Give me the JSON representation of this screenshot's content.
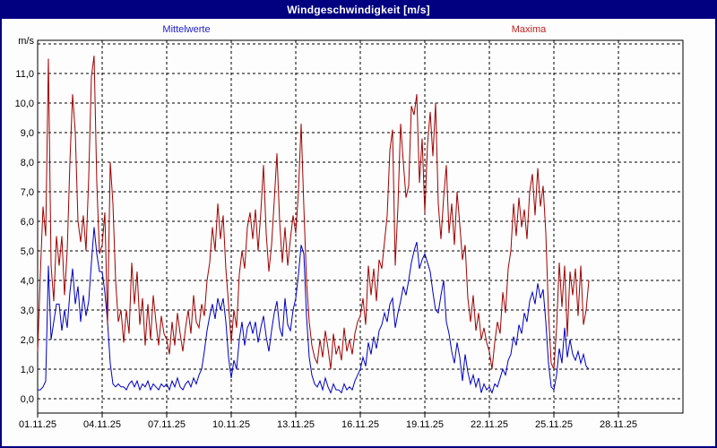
{
  "window": {
    "title": "Windgeschwindigkeit [m/s]",
    "title_bar_color": "#000080",
    "border_color": "#000080",
    "background": "#FDFDFD"
  },
  "legend": {
    "mittelwerte": {
      "label": "Mittelwerte",
      "color": "#2222C8"
    },
    "maxima": {
      "label": "Maxima",
      "color": "#C02020"
    }
  },
  "chart_data": {
    "type": "line",
    "title": "Windgeschwindigkeit [m/s]",
    "y_unit": "m/s",
    "grid": "dashed",
    "sample_interval_hours": 3,
    "x_axis": {
      "tick_labels": [
        "01.11.25",
        "04.11.25",
        "07.11.25",
        "10.11.25",
        "13.11.25",
        "16.11.25",
        "19.11.25",
        "22.11.25",
        "25.11.25",
        "28.11.25"
      ],
      "tick_day_offsets": [
        0,
        3,
        6,
        9,
        12,
        15,
        18,
        21,
        24,
        27
      ],
      "total_days_span": 30
    },
    "y_axis": {
      "tick_values": [
        0,
        1,
        2,
        3,
        4,
        5,
        6,
        7,
        8,
        9,
        10,
        11
      ],
      "tick_labels": [
        "0,0",
        "1,0",
        "2,0",
        "3,0",
        "4,0",
        "5,0",
        "6,0",
        "7,0",
        "8,0",
        "9,0",
        "10,0",
        "11,0"
      ],
      "gridline_max_value": 12,
      "ylim": [
        -0.5,
        12.1
      ]
    },
    "series": [
      {
        "name": "Mittelwerte",
        "color": "#0000C0",
        "values": [
          0.3,
          0.3,
          0.4,
          0.6,
          4.5,
          2.0,
          2.6,
          3.2,
          3.2,
          2.3,
          3.0,
          2.4,
          3.6,
          4.4,
          3.2,
          3.8,
          2.6,
          3.5,
          2.8,
          3.3,
          4.6,
          5.8,
          4.9,
          4.3,
          4.3,
          3.6,
          2.6,
          1.2,
          0.5,
          0.4,
          0.5,
          0.4,
          0.4,
          0.3,
          0.5,
          0.6,
          0.4,
          0.6,
          0.3,
          0.5,
          0.4,
          0.6,
          0.3,
          0.5,
          0.4,
          0.3,
          0.5,
          0.4,
          0.5,
          0.3,
          0.6,
          0.4,
          0.7,
          0.4,
          0.3,
          0.5,
          0.6,
          0.4,
          0.7,
          0.5,
          0.8,
          1.0,
          1.6,
          2.3,
          2.8,
          3.2,
          2.7,
          3.4,
          3.0,
          3.4,
          2.6,
          1.4,
          0.7,
          1.3,
          1.0,
          2.0,
          2.6,
          1.8,
          2.4,
          2.6,
          2.2,
          2.6,
          1.9,
          2.4,
          2.8,
          2.1,
          1.6,
          2.3,
          2.9,
          3.3,
          2.4,
          2.1,
          3.4,
          2.5,
          2.3,
          3.0,
          3.4,
          4.2,
          5.2,
          4.9,
          2.8,
          1.4,
          0.8,
          0.5,
          0.4,
          0.6,
          0.3,
          0.7,
          0.4,
          0.2,
          0.5,
          0.3,
          0.3,
          0.2,
          0.5,
          0.3,
          0.4,
          0.3,
          0.6,
          0.8,
          1.0,
          1.4,
          1.1,
          1.9,
          1.5,
          2.1,
          1.7,
          2.3,
          2.5,
          2.9,
          2.6,
          3.2,
          3.4,
          2.4,
          2.9,
          3.3,
          3.8,
          3.5,
          4.0,
          4.6,
          5.0,
          5.3,
          4.4,
          4.7,
          4.9,
          4.6,
          4.3,
          3.6,
          3.0,
          2.9,
          3.5,
          4.0,
          2.6,
          2.2,
          1.6,
          1.2,
          1.9,
          1.4,
          0.6,
          1.5,
          0.9,
          0.5,
          0.8,
          0.4,
          0.7,
          0.2,
          0.5,
          0.3,
          0.4,
          0.2,
          0.5,
          0.4,
          0.7,
          1.0,
          0.8,
          1.3,
          1.5,
          2.1,
          1.8,
          2.5,
          2.2,
          2.9,
          2.6,
          3.3,
          3.6,
          3.2,
          3.9,
          3.4,
          3.7,
          2.6,
          1.2,
          0.4,
          0.3,
          0.8,
          1.7,
          1.2,
          2.4,
          1.4,
          2.0,
          1.5,
          1.3,
          1.6,
          1.2,
          1.5,
          1.1,
          1.0
        ]
      },
      {
        "name": "Maxima",
        "color": "#A00000",
        "values": [
          1.6,
          4.2,
          6.5,
          5.5,
          11.5,
          4.5,
          3.3,
          5.5,
          4.5,
          5.5,
          3.5,
          5.0,
          8.0,
          10.3,
          9.0,
          6.0,
          5.3,
          6.2,
          5.0,
          7.5,
          10.9,
          11.6,
          7.3,
          4.9,
          5.2,
          6.3,
          2.5,
          8.0,
          6.6,
          4.0,
          2.6,
          3.0,
          1.9,
          3.0,
          2.2,
          4.6,
          3.2,
          4.3,
          2.5,
          3.4,
          1.8,
          3.2,
          2.0,
          3.5,
          2.6,
          1.8,
          2.8,
          2.2,
          2.0,
          1.5,
          2.6,
          1.8,
          2.9,
          2.2,
          1.6,
          2.4,
          3.0,
          2.2,
          3.5,
          2.6,
          2.4,
          3.2,
          2.8,
          4.0,
          4.6,
          5.8,
          5.0,
          6.6,
          5.4,
          6.2,
          4.4,
          3.2,
          1.9,
          3.0,
          2.4,
          4.2,
          5.0,
          4.4,
          5.8,
          6.3,
          5.4,
          6.4,
          5.0,
          6.3,
          7.9,
          5.6,
          4.3,
          5.2,
          6.7,
          8.3,
          6.0,
          4.6,
          5.8,
          4.5,
          5.4,
          6.2,
          5.6,
          7.0,
          9.3,
          6.5,
          4.0,
          2.6,
          1.8,
          1.4,
          1.2,
          2.0,
          1.4,
          2.3,
          1.7,
          1.0,
          2.2,
          1.5,
          1.8,
          1.3,
          2.4,
          1.6,
          2.0,
          1.5,
          2.2,
          2.6,
          2.8,
          3.4,
          2.5,
          4.5,
          3.5,
          4.4,
          3.3,
          4.7,
          4.4,
          5.3,
          6.2,
          8.4,
          9.1,
          4.5,
          6.5,
          9.3,
          8.0,
          6.8,
          7.2,
          9.9,
          9.6,
          10.3,
          7.3,
          8.8,
          6.3,
          8.6,
          9.7,
          8.2,
          10.0,
          6.6,
          5.4,
          6.8,
          7.9,
          5.6,
          6.6,
          5.2,
          7.0,
          5.9,
          4.7,
          5.2,
          3.4,
          2.6,
          3.5,
          2.3,
          2.9,
          2.0,
          2.4,
          1.9,
          1.6,
          1.0,
          1.9,
          2.6,
          2.2,
          3.6,
          2.9,
          4.4,
          5.0,
          6.6,
          5.5,
          6.8,
          5.8,
          6.4,
          5.4,
          7.0,
          7.6,
          6.2,
          7.8,
          6.5,
          7.2,
          5.6,
          2.9,
          1.2,
          1.0,
          2.4,
          4.6,
          3.1,
          4.5,
          2.1,
          4.3,
          3.5,
          4.4,
          2.8,
          4.5,
          2.5,
          3.0,
          4.0
        ]
      }
    ]
  }
}
